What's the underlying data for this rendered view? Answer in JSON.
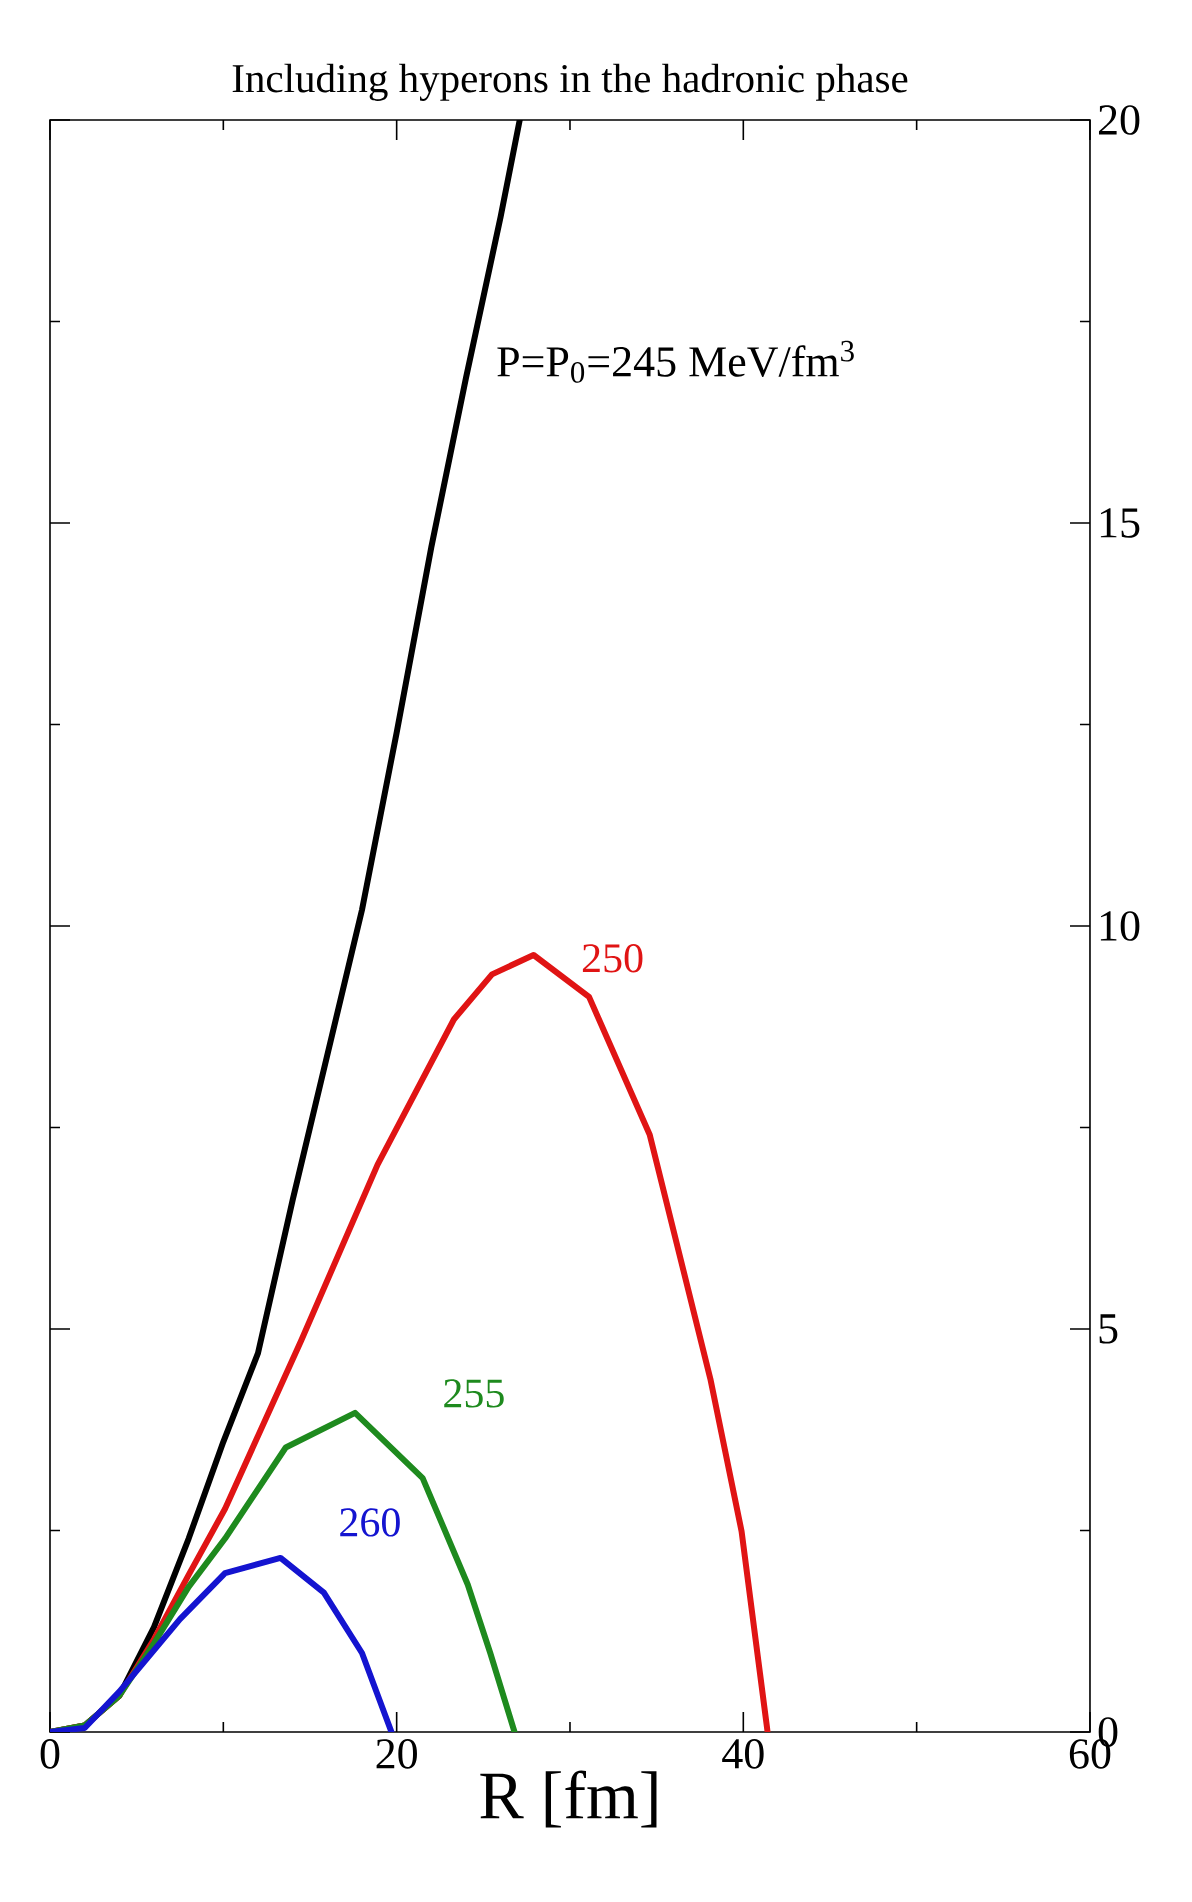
{
  "chart_data": {
    "type": "line",
    "title": "Including hyperons in the hadronic phase",
    "xlabel": "R [fm]",
    "xlim": [
      0,
      60
    ],
    "xticks": [
      0,
      {
        "value": 10,
        "label": null
      },
      20,
      {
        "value": 30,
        "label": null
      },
      40,
      {
        "value": 50,
        "label": null
      },
      60
    ],
    "ylim": [
      0,
      20
    ],
    "yticks": [
      0,
      {
        "value": 2.5,
        "label": null
      },
      5,
      {
        "value": 7.5,
        "label": null
      },
      10,
      {
        "value": 12.5,
        "label": null
      },
      15,
      {
        "value": 17.5,
        "label": null
      },
      20
    ],
    "grid": false,
    "legend": false,
    "marker": "none",
    "line_style": "solid",
    "series": [
      {
        "name": "P=P$_{0}$=245 MeV/fm$^{3}$",
        "color": "#000000",
        "x": [
          0,
          2,
          4,
          6,
          8,
          10,
          12,
          14,
          16,
          18,
          20,
          22,
          24,
          26,
          27.1
        ],
        "values": [
          0,
          0.08,
          0.45,
          1.3,
          2.4,
          3.6,
          4.7,
          6.6,
          8.4,
          10.2,
          12.4,
          14.7,
          16.8,
          18.8,
          20
        ]
      },
      {
        "name": "250",
        "color": "#e01414",
        "x": [
          0,
          2,
          4,
          6,
          8,
          10.1,
          14.5,
          18.9,
          23.3,
          25.5,
          27.9,
          31.1,
          34.6,
          38.1,
          39.9,
          41.4
        ],
        "values": [
          0,
          0.08,
          0.45,
          1.15,
          1.95,
          2.77,
          4.86,
          7.04,
          8.84,
          9.4,
          9.64,
          9.12,
          7.41,
          4.38,
          2.49,
          0
        ]
      },
      {
        "name": "255",
        "color": "#1e8a1e",
        "x": [
          0,
          2,
          4,
          6,
          8,
          10.1,
          13.6,
          17.6,
          21.5,
          24.1,
          25.4,
          26.8
        ],
        "values": [
          0,
          0.08,
          0.45,
          1.1,
          1.8,
          2.4,
          3.53,
          3.96,
          3.15,
          1.83,
          0.98,
          0
        ]
      },
      {
        "name": "260",
        "color": "#1414d0",
        "x": [
          0,
          2,
          4,
          7.5,
          10.1,
          13.3,
          15.8,
          18,
          19.7
        ],
        "values": [
          0,
          0.05,
          0.5,
          1.4,
          1.97,
          2.16,
          1.73,
          0.98,
          0
        ]
      }
    ]
  }
}
